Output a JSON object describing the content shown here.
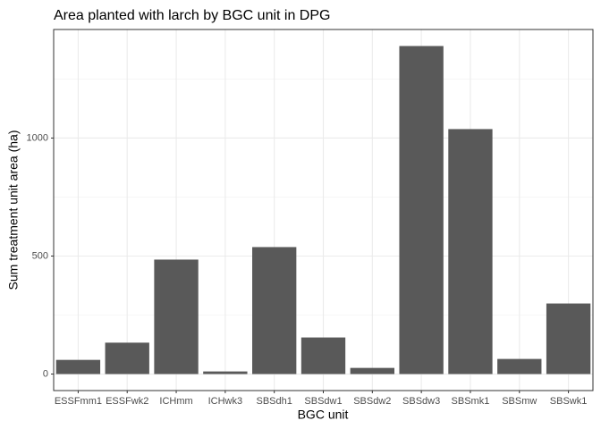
{
  "chart_data": {
    "type": "bar",
    "title": "Area planted with larch by BGC unit in DPG",
    "x_label": "BGC unit",
    "y_label": "Sum treatment unit area (ha)",
    "categories": [
      "ESSFmm1",
      "ESSFwk2",
      "ICHmm",
      "ICHwk3",
      "SBSdh1",
      "SBSdw1",
      "SBSdw2",
      "SBSdw3",
      "SBSmk1",
      "SBSmw",
      "SBSwk1"
    ],
    "values": [
      60,
      133,
      485,
      11,
      538,
      155,
      26,
      1390,
      1038,
      64,
      299
    ],
    "color": "#595959",
    "ylim": [
      -70,
      1460
    ],
    "yticks": [
      0,
      500,
      1000
    ],
    "minor_yticks": [
      250,
      750,
      1250
    ],
    "grid": true
  }
}
